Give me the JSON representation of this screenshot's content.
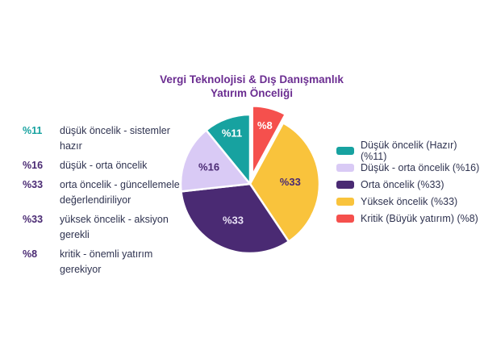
{
  "title": {
    "line1": "Vergi Teknolojisi & Dış Danışmanlık",
    "line2": "Yatırım Önceliği",
    "color": "#6B2D91"
  },
  "left_list": {
    "items": [
      {
        "pct": "%11",
        "pct_color": "#17A2A0",
        "text": "düşük öncelik - sistemler hazır"
      },
      {
        "pct": "%16",
        "pct_color": "#4A2A73",
        "text": "düşük - orta öncelik"
      },
      {
        "pct": "%33",
        "pct_color": "#4A2A73",
        "text": "orta öncelik - güncellemeler değerlendiriliyor"
      },
      {
        "pct": "%33",
        "pct_color": "#4A2A73",
        "text": "yüksek öncelik - aksiyon gerekli"
      },
      {
        "pct": "%8",
        "pct_color": "#4A2A73",
        "text": "kritik - önemli yatırım gerekiyor"
      }
    ]
  },
  "legend": {
    "items": [
      {
        "label": "Düşük öncelik (Hazır) (%11)",
        "color": "#17A2A0"
      },
      {
        "label": "Düşük - orta öncelik (%16)",
        "color": "#D9CAF5"
      },
      {
        "label": "Orta öncelik (%33)",
        "color": "#4A2A73"
      },
      {
        "label": "Yüksek öncelik (%33)",
        "color": "#F9C33C"
      },
      {
        "label": "Kritik (Büyük yatırım) (%8)",
        "color": "#F5504D"
      }
    ]
  },
  "chart_data": {
    "type": "pie",
    "title": "Vergi Teknolojisi & Dış Danışmanlık Yatırım Önceliği",
    "start_angle_deg": 0,
    "clockwise": true,
    "legend_position": "right",
    "slices": [
      {
        "name": "Kritik (Büyük yatırım)",
        "value": 8,
        "display": "%8",
        "color": "#F5504D",
        "label_color": "#FFFFFF",
        "explode": 11
      },
      {
        "name": "Yüksek öncelik",
        "value": 33,
        "display": "%33",
        "color": "#F9C33C",
        "label_color": "#4A2A73",
        "explode": 0
      },
      {
        "name": "Orta öncelik",
        "value": 33,
        "display": "%33",
        "color": "#4A2A73",
        "label_color": "#E9E2F6",
        "explode": 0
      },
      {
        "name": "Düşük - orta öncelik",
        "value": 16,
        "display": "%16",
        "color": "#D9CAF5",
        "label_color": "#4A2A73",
        "explode": 0
      },
      {
        "name": "Düşük öncelik (Hazır)",
        "value": 11,
        "display": "%11",
        "color": "#17A2A0",
        "label_color": "#FFFFFF",
        "explode": 0
      }
    ]
  }
}
